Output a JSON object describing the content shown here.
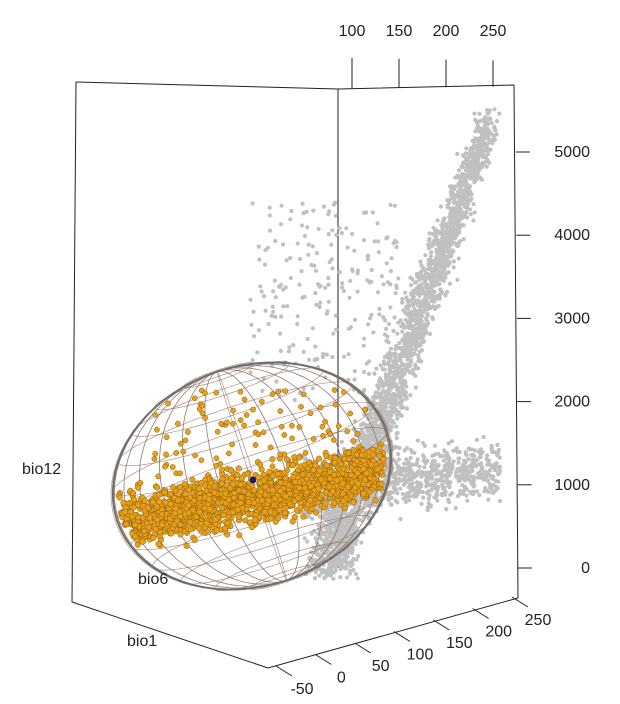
{
  "chart_data": {
    "type": "scatter",
    "title": "",
    "axes": {
      "bio1": {
        "label": "bio1",
        "ticks": [
          "-50",
          "0",
          "50",
          "100",
          "150",
          "200",
          "250"
        ],
        "range": [
          -50,
          250
        ]
      },
      "bio6": {
        "label": "bio6",
        "ticks": [
          "100",
          "150",
          "200",
          "250"
        ],
        "range": [
          100,
          250
        ]
      },
      "bio12": {
        "label": "bio12",
        "ticks": [
          "0",
          "1000",
          "2000",
          "3000",
          "4000",
          "5000"
        ],
        "range": [
          0,
          5500
        ]
      }
    },
    "series": [
      {
        "role": "background",
        "color": "#c0c0c0",
        "points": [
          {
            "bio1": 230,
            "bio12": 5350
          },
          {
            "bio1": 225,
            "bio12": 4900
          },
          {
            "bio1": 215,
            "bio12": 4500
          },
          {
            "bio1": 235,
            "bio12": 4200
          },
          {
            "bio1": 200,
            "bio12": 3900
          },
          {
            "bio1": 240,
            "bio12": 3700
          },
          {
            "bio1": 190,
            "bio12": 3400
          },
          {
            "bio1": 250,
            "bio12": 3200
          },
          {
            "bio1": 170,
            "bio12": 3000
          },
          {
            "bio1": 210,
            "bio12": 2800
          },
          {
            "bio1": 150,
            "bio12": 2600
          },
          {
            "bio1": 230,
            "bio12": 2500
          },
          {
            "bio1": 130,
            "bio12": 2300
          },
          {
            "bio1": 200,
            "bio12": 2100
          },
          {
            "bio1": 110,
            "bio12": 1900
          },
          {
            "bio1": 240,
            "bio12": 1800
          },
          {
            "bio1": 180,
            "bio12": 1500
          },
          {
            "bio1": 90,
            "bio12": 1300
          },
          {
            "bio1": 220,
            "bio12": 1100
          },
          {
            "bio1": 150,
            "bio12": 900
          },
          {
            "bio1": 100,
            "bio12": 600
          },
          {
            "bio1": 60,
            "bio12": 300
          }
        ]
      },
      {
        "role": "selected",
        "color": "#e6a01e",
        "points": [
          {
            "bio1": 20,
            "bio12": 2100
          },
          {
            "bio1": 40,
            "bio12": 1900
          },
          {
            "bio1": 0,
            "bio12": 1700
          },
          {
            "bio1": 60,
            "bio12": 1600
          },
          {
            "bio1": -20,
            "bio12": 1400
          },
          {
            "bio1": 80,
            "bio12": 1300
          },
          {
            "bio1": 30,
            "bio12": 1200
          },
          {
            "bio1": -40,
            "bio12": 1000
          },
          {
            "bio1": 100,
            "bio12": 900
          },
          {
            "bio1": 10,
            "bio12": 800
          },
          {
            "bio1": 50,
            "bio12": 600
          },
          {
            "bio1": -10,
            "bio12": 400
          }
        ]
      },
      {
        "role": "centroid",
        "color": "#1a1a66",
        "points": [
          {
            "bio1": 35,
            "bio12": 1150
          }
        ]
      }
    ],
    "ellipsoid": {
      "shown": true,
      "color": "#8a7060"
    },
    "grid": false,
    "legend": "none"
  }
}
